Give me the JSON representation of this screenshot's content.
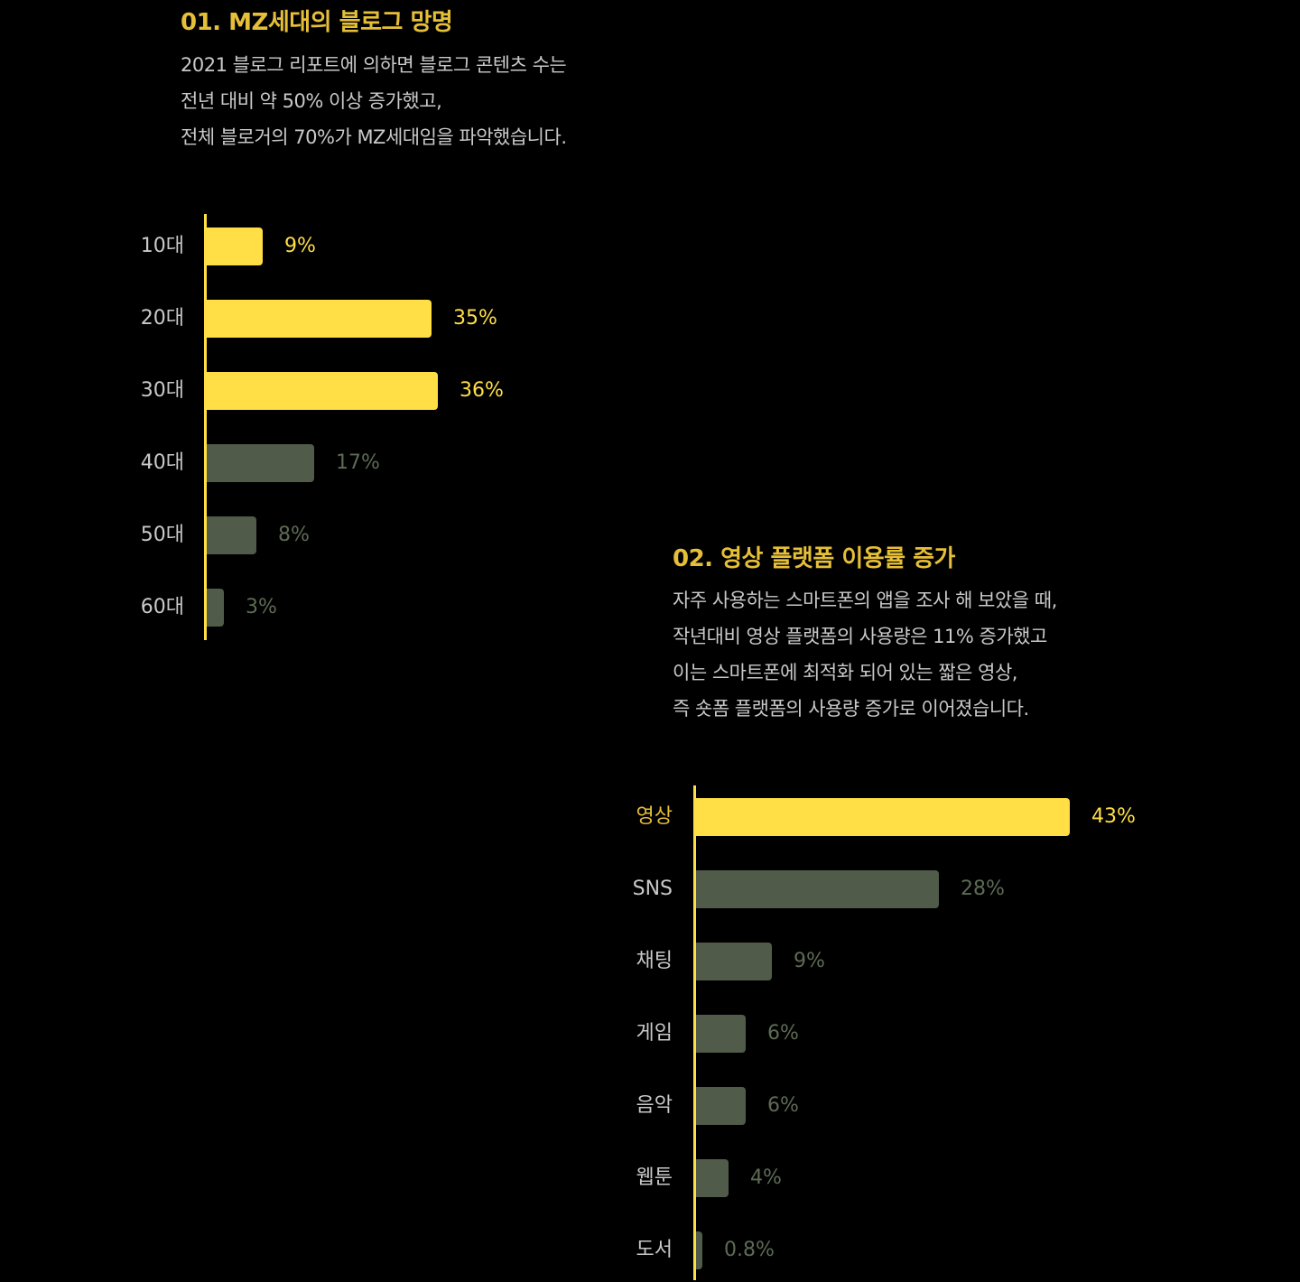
{
  "colors": {
    "background": "#000000",
    "highlight": "#ffdf45",
    "muted": "#515b4a",
    "muted_text": "#5d6b55",
    "title": "#e6bf38",
    "text": "#c9c9c9"
  },
  "section1": {
    "title": "01. MZ세대의 블로그 망명",
    "description": [
      "2021 블로그 리포트에 의하면 블로그 콘텐츠 수는",
      "전년 대비 약 50% 이상 증가했고,",
      "전체 블로거의 70%가 MZ세대임을 파악했습니다."
    ]
  },
  "section2": {
    "title": "02. 영상 플랫폼 이용률 증가",
    "description": [
      "자주 사용하는 스마트폰의 앱을 조사 해 보았을 때,",
      "작년대비 영상 플랫폼의 사용량은 11% 증가했고",
      "이는 스마트폰에 최적화 되어 있는 짧은 영상,",
      "즉 숏폼 플랫폼의 사용량 증가로 이어졌습니다."
    ]
  },
  "chart_data": [
    {
      "type": "bar",
      "orientation": "horizontal",
      "categories": [
        "10대",
        "20대",
        "30대",
        "40대",
        "50대",
        "60대"
      ],
      "values": [
        9,
        35,
        36,
        17,
        8,
        3
      ],
      "value_labels": [
        "9%",
        "35%",
        "36%",
        "17%",
        "8%",
        "3%"
      ],
      "highlighted": [
        true,
        true,
        true,
        false,
        false,
        false
      ],
      "title": "",
      "xlabel": "",
      "ylabel": ""
    },
    {
      "type": "bar",
      "orientation": "horizontal",
      "categories": [
        "영상",
        "SNS",
        "채팅",
        "게임",
        "음악",
        "웹툰",
        "도서"
      ],
      "values": [
        43,
        28,
        9,
        6,
        6,
        4,
        0.8
      ],
      "value_labels": [
        "43%",
        "28%",
        "9%",
        "6%",
        "6%",
        "4%",
        "0.8%"
      ],
      "highlighted": [
        true,
        false,
        false,
        false,
        false,
        false,
        false
      ],
      "title": "",
      "xlabel": "",
      "ylabel": ""
    }
  ]
}
